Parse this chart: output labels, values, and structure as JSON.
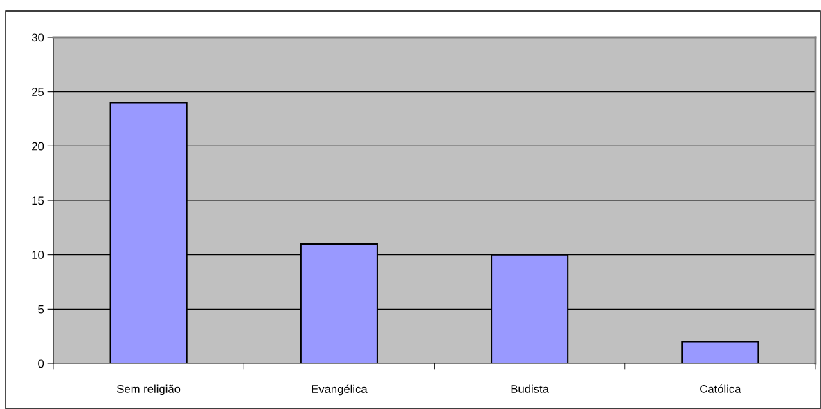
{
  "chart_data": {
    "type": "bar",
    "categories": [
      "Sem religião",
      "Evangélica",
      "Budista",
      "Católica"
    ],
    "values": [
      24,
      11,
      10,
      2
    ],
    "color": "#9999ff",
    "ylim": [
      0,
      30
    ],
    "yticks": [
      0,
      5,
      10,
      15,
      20,
      25,
      30
    ],
    "grid": "y"
  }
}
